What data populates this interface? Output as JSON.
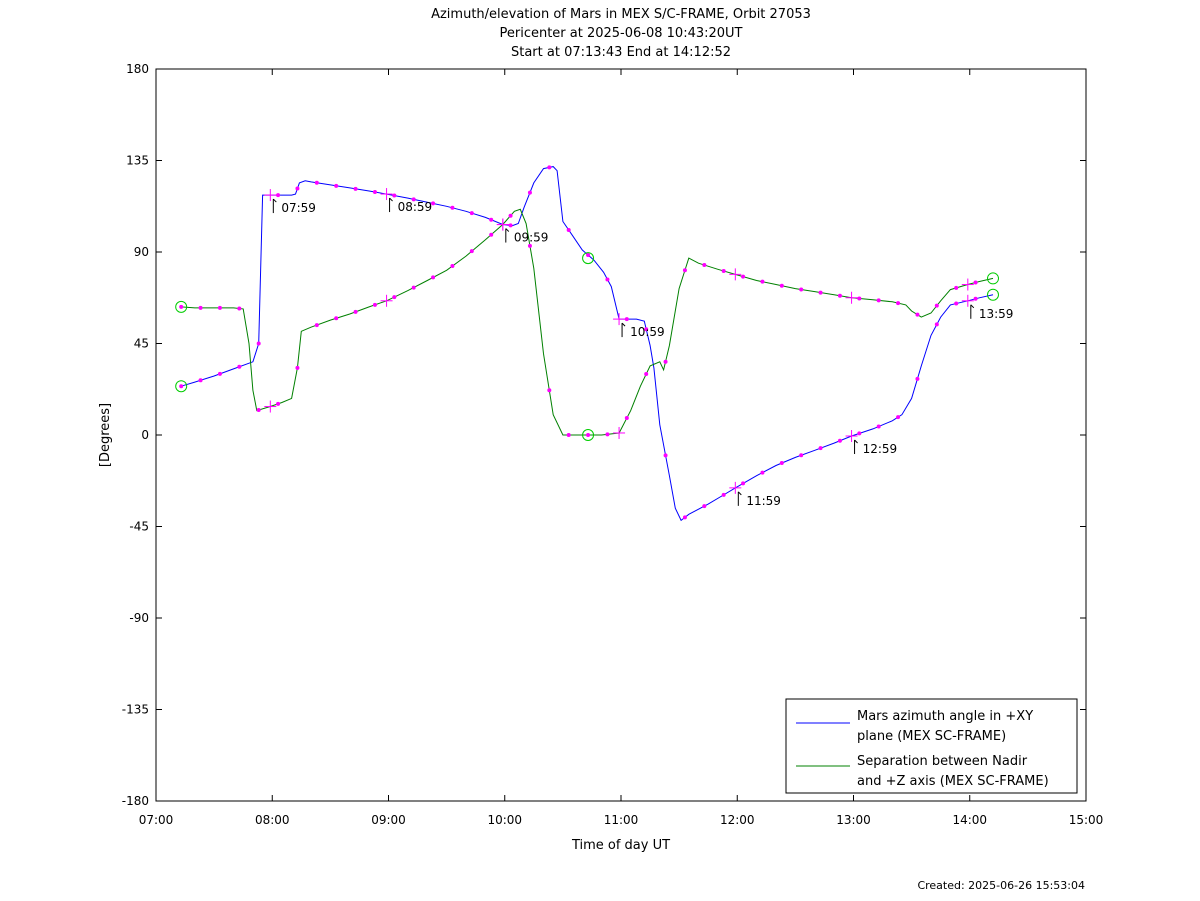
{
  "chart_data": {
    "type": "line",
    "title": "Azimuth/elevation of Mars in MEX S/C-FRAME,  Orbit 27053",
    "subtitle1": "Pericenter at 2025-06-08 10:43:20UT",
    "subtitle2": "Start at 07:13:43 End at 14:12:52",
    "xlabel": "Time of day UT",
    "ylabel": "[Degrees]",
    "xlim": [
      "07:00",
      "15:00"
    ],
    "ylim": [
      -180,
      180
    ],
    "x_ticks": [
      "07:00",
      "08:00",
      "09:00",
      "10:00",
      "11:00",
      "12:00",
      "13:00",
      "14:00",
      "15:00"
    ],
    "y_ticks": [
      "180",
      "135",
      "90",
      "45",
      "0",
      "-45",
      "-90",
      "-135",
      "-180"
    ],
    "grid": false,
    "legend_position": "bottom-right",
    "footer": "Created: 2025-06-26 15:53:04",
    "series": [
      {
        "name_lines": [
          "Mars azimuth angle in +XY",
          "plane (MEX SC-FRAME)"
        ],
        "color": "#0000ff",
        "points": [
          [
            "07:13",
            24
          ],
          [
            "07:20",
            26
          ],
          [
            "07:30",
            29
          ],
          [
            "07:40",
            32.5
          ],
          [
            "07:50",
            36
          ],
          [
            "07:53",
            45
          ],
          [
            "07:55",
            118
          ],
          [
            "07:59",
            118
          ],
          [
            "08:06",
            118
          ],
          [
            "08:10",
            118
          ],
          [
            "08:12",
            118.5
          ],
          [
            "08:14",
            124
          ],
          [
            "08:17",
            125
          ],
          [
            "08:20",
            124.5
          ],
          [
            "08:30",
            123
          ],
          [
            "08:40",
            121.5
          ],
          [
            "08:50",
            120
          ],
          [
            "08:59",
            118.5
          ],
          [
            "09:10",
            116.5
          ],
          [
            "09:20",
            114.5
          ],
          [
            "09:30",
            112.5
          ],
          [
            "09:40",
            110
          ],
          [
            "09:50",
            107
          ],
          [
            "09:59",
            103.5
          ],
          [
            "10:04",
            103
          ],
          [
            "10:07",
            104
          ],
          [
            "10:10",
            112
          ],
          [
            "10:15",
            124
          ],
          [
            "10:20",
            131
          ],
          [
            "10:25",
            132
          ],
          [
            "10:27",
            130
          ],
          [
            "10:30",
            105
          ],
          [
            "10:35",
            98
          ],
          [
            "10:40",
            91
          ],
          [
            "10:46",
            86
          ],
          [
            "10:51",
            80
          ],
          [
            "10:55",
            73
          ],
          [
            "10:59",
            57
          ],
          [
            "11:04",
            57
          ],
          [
            "11:08",
            57
          ],
          [
            "11:12",
            56
          ],
          [
            "11:15",
            44
          ],
          [
            "11:17",
            33
          ],
          [
            "11:20",
            5
          ],
          [
            "11:25",
            -20
          ],
          [
            "11:28",
            -36
          ],
          [
            "11:31",
            -42
          ],
          [
            "11:35",
            -39
          ],
          [
            "11:45",
            -34
          ],
          [
            "11:52",
            -30
          ],
          [
            "11:59",
            -26
          ],
          [
            "12:10",
            -20
          ],
          [
            "12:20",
            -15
          ],
          [
            "12:30",
            -11
          ],
          [
            "12:40",
            -7.5
          ],
          [
            "12:50",
            -4
          ],
          [
            "12:59",
            -0.5
          ],
          [
            "13:10",
            3
          ],
          [
            "13:20",
            7
          ],
          [
            "13:25",
            10
          ],
          [
            "13:30",
            18
          ],
          [
            "13:35",
            34
          ],
          [
            "13:40",
            49
          ],
          [
            "13:45",
            58
          ],
          [
            "13:50",
            64
          ],
          [
            "13:59",
            66
          ],
          [
            "14:05",
            67.5
          ],
          [
            "14:12",
            69
          ]
        ]
      },
      {
        "name_lines": [
          "Separation between Nadir",
          "and +Z axis (MEX SC-FRAME)"
        ],
        "color": "#008000",
        "points": [
          [
            "07:13",
            63
          ],
          [
            "07:20",
            62.5
          ],
          [
            "07:30",
            62.5
          ],
          [
            "07:40",
            62.5
          ],
          [
            "07:45",
            62
          ],
          [
            "07:48",
            45
          ],
          [
            "07:50",
            22
          ],
          [
            "07:52",
            12
          ],
          [
            "07:59",
            14
          ],
          [
            "08:05",
            16
          ],
          [
            "08:10",
            18
          ],
          [
            "08:13",
            33
          ],
          [
            "08:15",
            51
          ],
          [
            "08:20",
            53
          ],
          [
            "08:30",
            56.5
          ],
          [
            "08:40",
            59.5
          ],
          [
            "08:50",
            63
          ],
          [
            "08:59",
            66
          ],
          [
            "09:10",
            71
          ],
          [
            "09:20",
            76
          ],
          [
            "09:30",
            81
          ],
          [
            "09:40",
            88
          ],
          [
            "09:50",
            96
          ],
          [
            "09:59",
            103.5
          ],
          [
            "10:05",
            110
          ],
          [
            "10:08",
            111
          ],
          [
            "10:11",
            104
          ],
          [
            "10:15",
            82
          ],
          [
            "10:20",
            40
          ],
          [
            "10:25",
            10
          ],
          [
            "10:30",
            0
          ],
          [
            "10:35",
            0
          ],
          [
            "10:40",
            0
          ],
          [
            "10:43",
            0
          ],
          [
            "10:50",
            0
          ],
          [
            "10:59",
            1
          ],
          [
            "11:05",
            12
          ],
          [
            "11:10",
            24
          ],
          [
            "11:15",
            34
          ],
          [
            "11:20",
            36
          ],
          [
            "11:22",
            32
          ],
          [
            "11:25",
            44
          ],
          [
            "11:30",
            72
          ],
          [
            "11:35",
            87
          ],
          [
            "11:40",
            84.5
          ],
          [
            "11:50",
            81.5
          ],
          [
            "11:59",
            79
          ],
          [
            "12:10",
            76
          ],
          [
            "12:20",
            74
          ],
          [
            "12:30",
            72
          ],
          [
            "12:40",
            70.5
          ],
          [
            "12:50",
            69
          ],
          [
            "12:59",
            67.5
          ],
          [
            "13:10",
            66.5
          ],
          [
            "13:20",
            65.5
          ],
          [
            "13:27",
            64
          ],
          [
            "13:30",
            61
          ],
          [
            "13:35",
            58
          ],
          [
            "13:40",
            60
          ],
          [
            "13:45",
            66
          ],
          [
            "13:50",
            71.5
          ],
          [
            "13:59",
            74
          ],
          [
            "14:05",
            75.5
          ],
          [
            "14:12",
            77
          ]
        ]
      }
    ],
    "markers": {
      "color": "#ff00ff",
      "dots_interval_minutes": 10
    },
    "hour_annotations": [
      {
        "text": "07:59",
        "time": "07:59",
        "value": 118
      },
      {
        "text": "08:59",
        "time": "08:59",
        "value": 118.5
      },
      {
        "text": "09:59",
        "time": "09:59",
        "value": 103.5
      },
      {
        "text": "10:59",
        "time": "10:59",
        "value": 57
      },
      {
        "text": "11:59",
        "time": "11:59",
        "value": -26
      },
      {
        "text": "12:59",
        "time": "12:59",
        "value": -0.5
      },
      {
        "text": "13:59",
        "time": "13:59",
        "value": 66
      }
    ],
    "circle_markers": [
      {
        "time": "07:13",
        "value": 24
      },
      {
        "time": "07:13",
        "value": 63
      },
      {
        "time": "10:43",
        "value": 87
      },
      {
        "time": "10:43",
        "value": 0
      },
      {
        "time": "14:12",
        "value": 69
      },
      {
        "time": "14:12",
        "value": 77
      }
    ],
    "circle_color": "#00cc00"
  }
}
